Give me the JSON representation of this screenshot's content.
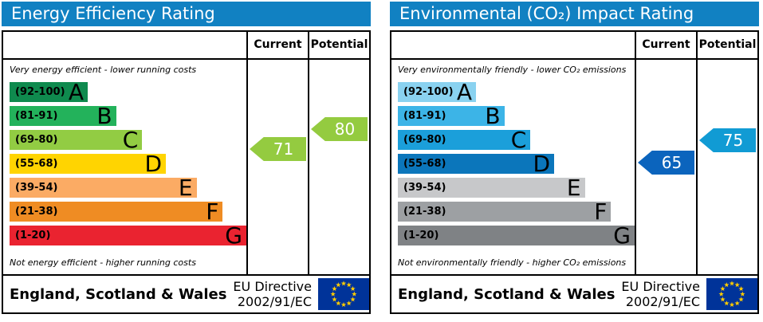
{
  "theme": {
    "header_bg": "#1181c2",
    "header_text": "#ffffff",
    "border": "#000000",
    "flag_bg": "#003399",
    "flag_star": "#ffcc00"
  },
  "columns": {
    "current": "Current",
    "potential": "Potential"
  },
  "footer": {
    "region": "England, Scotland & Wales",
    "directive_line1": "EU Directive",
    "directive_line2": "2002/91/EC"
  },
  "band_scale": [
    {
      "letter": "A",
      "range_label": "(92-100)",
      "min": 92,
      "max": 100,
      "width_pct": 33
    },
    {
      "letter": "B",
      "range_label": "(81-91)",
      "min": 81,
      "max": 91,
      "width_pct": 45
    },
    {
      "letter": "C",
      "range_label": "(69-80)",
      "min": 69,
      "max": 80,
      "width_pct": 56
    },
    {
      "letter": "D",
      "range_label": "(55-68)",
      "min": 55,
      "max": 68,
      "width_pct": 66
    },
    {
      "letter": "E",
      "range_label": "(39-54)",
      "min": 39,
      "max": 54,
      "width_pct": 79
    },
    {
      "letter": "F",
      "range_label": "(21-38)",
      "min": 21,
      "max": 38,
      "width_pct": 90
    },
    {
      "letter": "G",
      "range_label": "(1-20)",
      "min": 1,
      "max": 20,
      "width_pct": 100
    }
  ],
  "chart_data": [
    {
      "type": "bar",
      "title": "Energy Efficiency Rating",
      "top_caption": "Very energy efficient - lower running costs",
      "bottom_caption": "Not energy efficient - higher running costs",
      "categories": [
        "A (92-100)",
        "B (81-91)",
        "C (69-80)",
        "D (55-68)",
        "E (39-54)",
        "F (21-38)",
        "G (1-20)"
      ],
      "band_colors": [
        "#0f8a4e",
        "#23b25b",
        "#92cc43",
        "#ffd401",
        "#fbab64",
        "#ef8c23",
        "#ea2330"
      ],
      "current": {
        "value": 71,
        "band": "C",
        "arrow_color": "#94cb40"
      },
      "potential": {
        "value": 80,
        "band": "C",
        "arrow_color": "#94cb40"
      }
    },
    {
      "type": "bar",
      "title": "Environmental (CO₂) Impact Rating",
      "top_caption": "Very environmentally friendly - lower CO₂ emissions",
      "bottom_caption": "Not environmentally friendly - higher CO₂ emissions",
      "categories": [
        "A (92-100)",
        "B (81-91)",
        "C (69-80)",
        "D (55-68)",
        "E (39-54)",
        "F (21-38)",
        "G (1-20)"
      ],
      "band_colors": [
        "#8ad2f0",
        "#3cb4e7",
        "#1b9fda",
        "#0b76bb",
        "#c7c8ca",
        "#9da0a3",
        "#7f8285"
      ],
      "current": {
        "value": 65,
        "band": "D",
        "arrow_color": "#0b64bd"
      },
      "potential": {
        "value": 75,
        "band": "C",
        "arrow_color": "#119bd4"
      }
    }
  ]
}
